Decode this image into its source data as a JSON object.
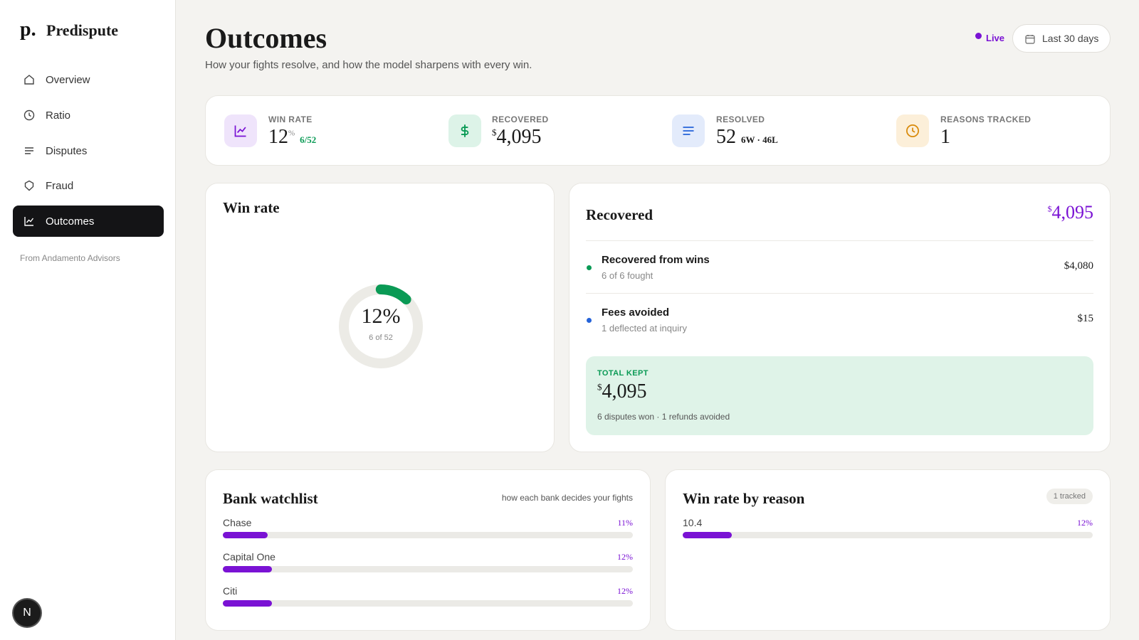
{
  "sidebar": {
    "logo": "p.",
    "brand": "Predispute",
    "nav": [
      {
        "label": "Overview"
      },
      {
        "label": "Ratio"
      },
      {
        "label": "Disputes"
      },
      {
        "label": "Fraud"
      },
      {
        "label": "Outcomes"
      }
    ],
    "footer": "From Andamento Advisors",
    "avatar": "N"
  },
  "header": {
    "title": "Outcomes",
    "subtitle": "How your fights resolve, and how the model sharpens with every win.",
    "live": "Live",
    "range": "Last 30 days"
  },
  "stats": [
    {
      "label": "WIN RATE",
      "value": "12",
      "unit": "%",
      "detail": "6/52"
    },
    {
      "label": "RECOVERED",
      "prefix": "$",
      "value": "4,095"
    },
    {
      "label": "RESOLVED",
      "value": "52",
      "detail": "6W · 46L"
    },
    {
      "label": "REASONS TRACKED",
      "value": "1"
    }
  ],
  "win_rate_card": {
    "title": "Win rate",
    "donut": {
      "value": 12,
      "label": "12%",
      "caption": "6 of 52"
    }
  },
  "recovered_card": {
    "title": "Recovered",
    "prefix": "$",
    "total": "4,095",
    "rows": [
      {
        "name": "Recovered from wins",
        "detail": "6 of 6 fought",
        "amount": "$4,080"
      },
      {
        "name": "Fees avoided",
        "detail": "1 deflected at inquiry",
        "amount": "$15"
      }
    ],
    "kept": {
      "label": "TOTAL KEPT",
      "prefix": "$",
      "value": "4,095",
      "note": "6 disputes won · 1 refunds avoided"
    }
  },
  "bank_watchlist": {
    "title": "Bank watchlist",
    "note": "how each bank decides your fights",
    "rows": [
      {
        "name": "Chase",
        "rate": {
          "value": 11,
          "label": "11%"
        }
      },
      {
        "name": "Capital One",
        "rate": {
          "value": 12,
          "label": "12%"
        }
      },
      {
        "name": "Citi",
        "rate": {
          "value": 12,
          "label": "12%"
        }
      }
    ]
  },
  "reason_card": {
    "title": "Win rate by reason",
    "badge": "1 tracked",
    "rows": [
      {
        "name": "10.4",
        "rate": {
          "value": 12,
          "label": "12%"
        }
      }
    ]
  }
}
